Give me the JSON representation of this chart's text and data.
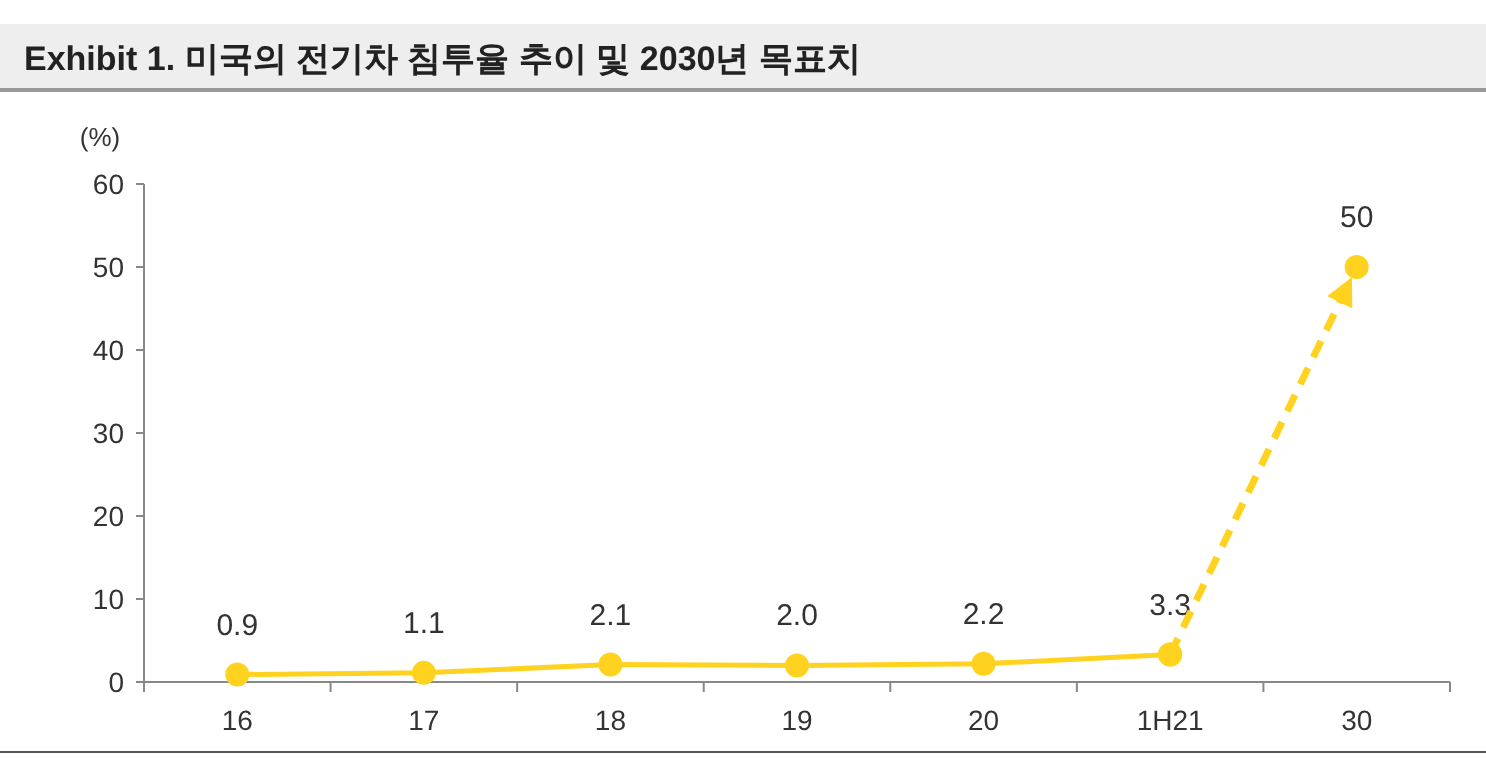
{
  "chart_data": {
    "type": "line",
    "title": "Exhibit 1. 미국의 전기차 침투율 추이 및 2030년 목표치",
    "ylabel": "(%)",
    "categories": [
      "16",
      "17",
      "18",
      "19",
      "20",
      "1H21",
      "30"
    ],
    "series": [
      {
        "color": "#ffd21f",
        "values": [
          0.9,
          1.1,
          2.1,
          2.0,
          2.2,
          3.3,
          null
        ],
        "value_labels": [
          "0.9",
          "1.1",
          "2.1",
          "2.0",
          "2.2",
          "3.3",
          null
        ],
        "line_style": "solid"
      },
      {
        "color": "#ffd21f",
        "values": [
          null,
          null,
          null,
          null,
          null,
          3.3,
          50
        ],
        "value_labels": [
          null,
          null,
          null,
          null,
          null,
          null,
          "50"
        ],
        "line_style": "dashed"
      }
    ],
    "ylim": [
      0,
      60
    ],
    "yticks": [
      0,
      10,
      20,
      30,
      40,
      50,
      60
    ],
    "marker": "circle",
    "grid": false
  }
}
